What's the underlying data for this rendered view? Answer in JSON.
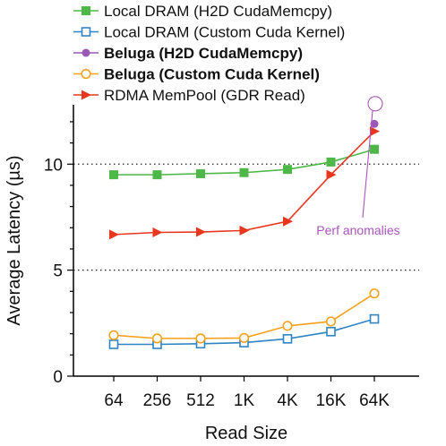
{
  "chart_data": {
    "type": "line",
    "title": "",
    "xlabel": "Read Size",
    "ylabel": "Average Latency (µs)",
    "categories": [
      "64",
      "256",
      "512",
      "1K",
      "4K",
      "16K",
      "64K"
    ],
    "ylim": [
      0,
      12.8
    ],
    "yticks": [
      0,
      5,
      10
    ],
    "reference_lines": [
      5,
      10
    ],
    "legend_position": "top",
    "series": [
      {
        "name": "Local DRAM (H2D CudaMemcpy)",
        "color": "#4db848",
        "marker": "filled-square",
        "bold": false,
        "values": [
          9.5,
          9.5,
          9.55,
          9.6,
          9.75,
          10.1,
          10.7
        ]
      },
      {
        "name": "Local DRAM (Custom Cuda Kernel)",
        "color": "#2f84c4",
        "marker": "open-square",
        "bold": false,
        "values": [
          1.5,
          1.5,
          1.53,
          1.58,
          1.76,
          2.1,
          2.7
        ]
      },
      {
        "name": "Beluga (H2D CudaMemcpy)",
        "color": "#9b59b6",
        "marker": "filled-circle",
        "bold": true,
        "values": [
          null,
          null,
          null,
          null,
          null,
          null,
          11.9
        ]
      },
      {
        "name": "Beluga (Custom Cuda Kernel)",
        "color": "#f5a11c",
        "marker": "open-circle",
        "bold": true,
        "values": [
          1.93,
          1.78,
          1.78,
          1.8,
          2.37,
          2.58,
          3.9
        ]
      },
      {
        "name": "RDMA MemPool (GDR Read)",
        "color": "#e8361f",
        "marker": "triangle-right",
        "bold": false,
        "values": [
          6.68,
          6.78,
          6.8,
          6.87,
          7.3,
          9.5,
          11.55
        ]
      }
    ],
    "annotations": [
      {
        "text": "Perf anomalies",
        "color": "#a855b8",
        "category": "64K",
        "value": 12.85
      }
    ]
  }
}
